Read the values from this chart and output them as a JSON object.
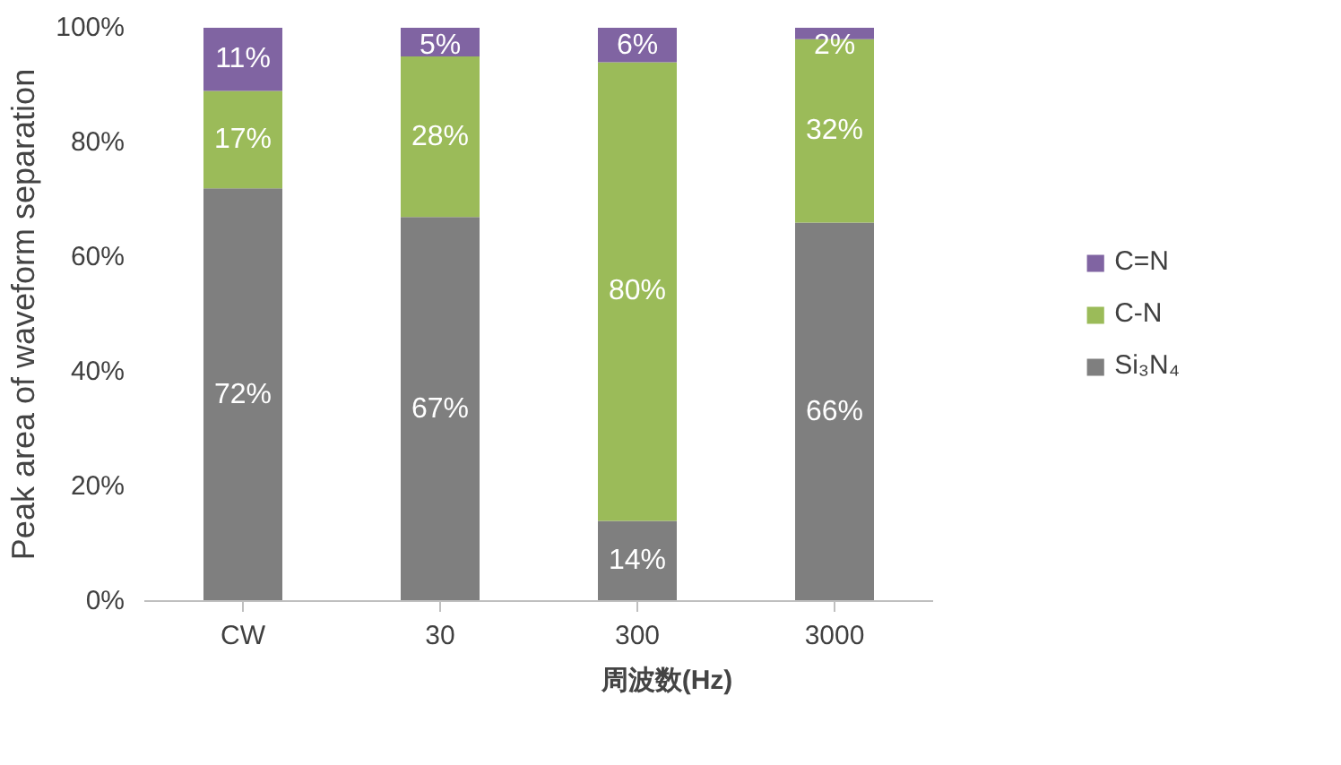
{
  "chart_data": {
    "type": "bar",
    "stacked": true,
    "xlabel": "周波数(Hz)",
    "ylabel": "Peak area of waveform separation",
    "categories": [
      "CW",
      "30",
      "300",
      "3000"
    ],
    "series": [
      {
        "name": "Si₃N₄",
        "color": "#7f7f7f",
        "values": [
          72,
          67,
          14,
          66
        ],
        "value_labels": [
          "72%",
          "67%",
          "14%",
          "66%"
        ]
      },
      {
        "name": "C-N",
        "color": "#9bbb59",
        "values": [
          17,
          28,
          80,
          32
        ],
        "value_labels": [
          "17%",
          "28%",
          "80%",
          "32%"
        ]
      },
      {
        "name": "C=N",
        "color": "#8064a2",
        "values": [
          11,
          5,
          6,
          2
        ],
        "value_labels": [
          "11%",
          "5%",
          "6%",
          "2%"
        ]
      }
    ],
    "ylim": [
      0,
      100
    ],
    "yticks": [
      {
        "value": 0,
        "label": "0%"
      },
      {
        "value": 20,
        "label": "20%"
      },
      {
        "value": 40,
        "label": "40%"
      },
      {
        "value": 60,
        "label": "60%"
      },
      {
        "value": 80,
        "label": "80%"
      },
      {
        "value": 100,
        "label": "100%"
      }
    ],
    "grid": false,
    "legend": "right"
  }
}
